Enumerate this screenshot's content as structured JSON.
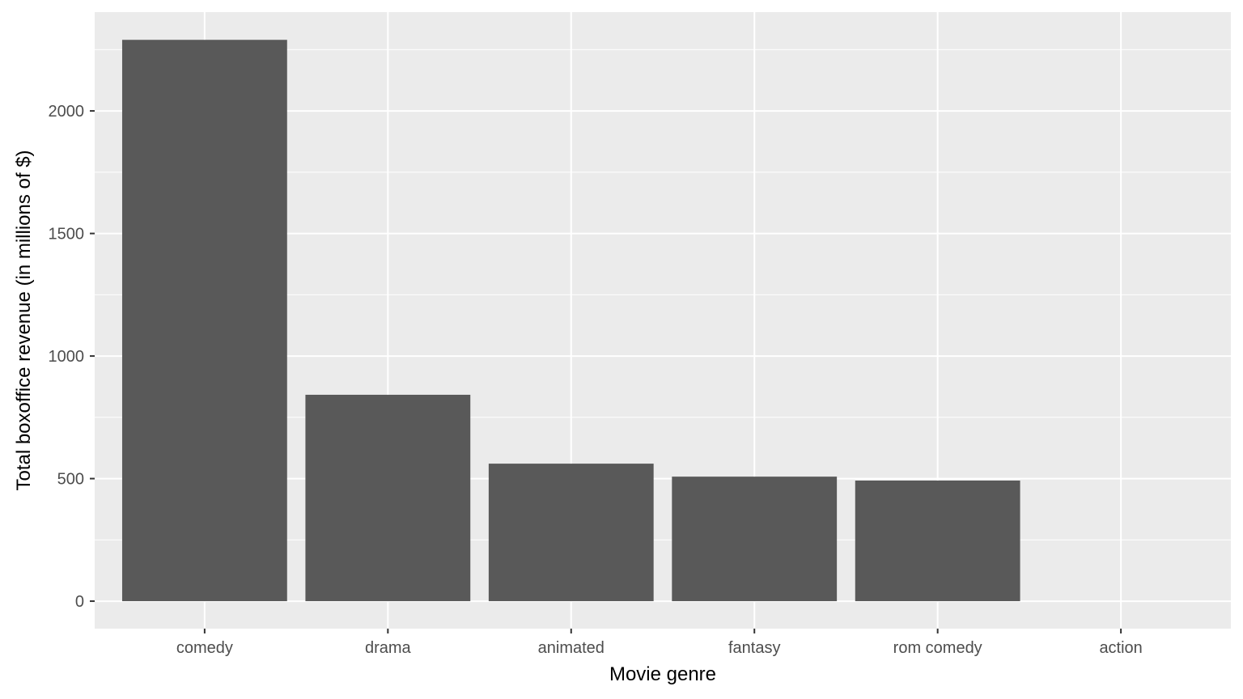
{
  "chart_data": {
    "type": "bar",
    "title": "",
    "xlabel": "Movie genre",
    "ylabel": "Total boxoffice revenue (in millions of $)",
    "categories": [
      "comedy",
      "drama",
      "animated",
      "fantasy",
      "rom comedy",
      "action"
    ],
    "values": [
      2290,
      842,
      561,
      508,
      492,
      0
    ],
    "ylim": [
      -112,
      2403
    ],
    "yticks": [
      0,
      500,
      1000,
      1500,
      2000
    ],
    "grid": true,
    "bar_color": "#595959",
    "panel_color": "#EBEBEB"
  }
}
